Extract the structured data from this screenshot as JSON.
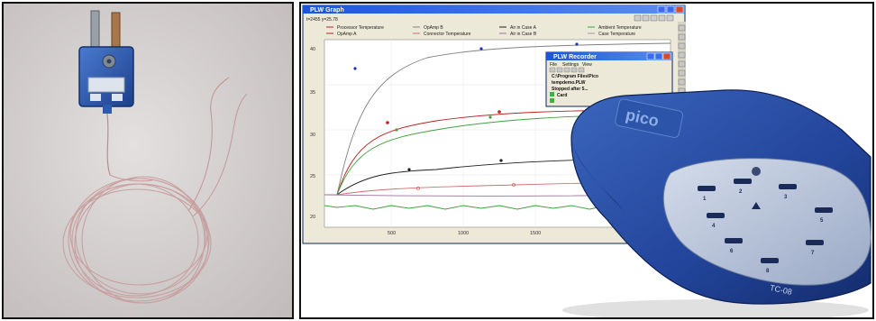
{
  "graph_window": {
    "title": "PLW Graph",
    "readout": "t=2455 y=25.78",
    "legend": [
      {
        "label": "Processor Temperature",
        "color": "#c02020"
      },
      {
        "label": "OpAmp A",
        "color": "#c02020"
      },
      {
        "label": "OpAmp B",
        "color": "#808080"
      },
      {
        "label": "Connector Temperature",
        "color": "#d07070"
      },
      {
        "label": "Air in Case A",
        "color": "#202020"
      },
      {
        "label": "Air in Case B",
        "color": "#a070a0"
      },
      {
        "label": "Ambient Temperature",
        "color": "#40a040"
      },
      {
        "label": "Case Temperature",
        "color": "#b090b0"
      }
    ],
    "y_ticks": [
      "40",
      "35",
      "30",
      "25",
      "20"
    ],
    "x_ticks": [
      "500",
      "1000",
      "1500"
    ]
  },
  "recorder_window": {
    "title": "PLW Recorder",
    "menu": [
      "File",
      "Settings",
      "View"
    ],
    "lines": [
      "C:\\Program Files\\Pico",
      "tempdemo.PLW",
      "Stopped after 5...",
      "Card"
    ]
  },
  "device": {
    "brand": "pico",
    "model": "TC-08",
    "channels": [
      "1",
      "2",
      "3",
      "4",
      "5",
      "6",
      "7",
      "8"
    ],
    "colors": {
      "body": "#2a4fa0",
      "panel": "#b9c6dc"
    }
  },
  "thermocouple": {
    "connector_color": "#2f5fb8",
    "wire_color": "#c8a0a0"
  }
}
